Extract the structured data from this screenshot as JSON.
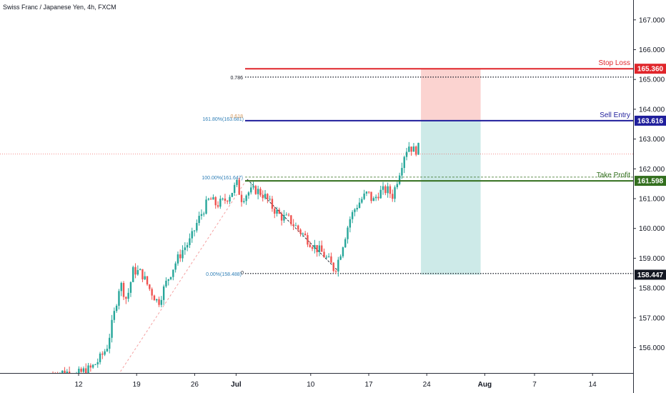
{
  "header": {
    "title": "Swiss Franc / Japanese Yen, 4h, FXCM"
  },
  "chart_data": {
    "type": "candlestick",
    "title": "Swiss Franc / Japanese Yen, 4h, FXCM",
    "y_ticks": [
      "156.000",
      "157.000",
      "158.000",
      "159.000",
      "160.000",
      "161.000",
      "162.000",
      "163.000",
      "164.000",
      "165.000",
      "166.000",
      "167.000"
    ],
    "ylim": [
      155.4,
      167.4
    ],
    "x_ticks": [
      {
        "label": "12",
        "day": 12
      },
      {
        "label": "19",
        "day": 19
      },
      {
        "label": "26",
        "day": 26
      },
      {
        "label": "Jul",
        "day": 31
      },
      {
        "label": "10",
        "day": 40
      },
      {
        "label": "17",
        "day": 47
      },
      {
        "label": "24",
        "day": 54
      },
      {
        "label": "Aug",
        "day": 61
      },
      {
        "label": "7",
        "day": 67
      },
      {
        "label": "14",
        "day": 74
      }
    ],
    "last_price": 162.5,
    "price_path": [
      [
        8.9,
        155.1
      ],
      [
        10.5,
        155.2
      ],
      [
        11.3,
        155.0
      ],
      [
        12.5,
        155.2
      ],
      [
        13.5,
        155.3
      ],
      [
        14.5,
        155.6
      ],
      [
        15.4,
        156.0
      ],
      [
        16.2,
        157.0
      ],
      [
        17.0,
        158.2
      ],
      [
        17.8,
        157.6
      ],
      [
        18.6,
        158.6
      ],
      [
        19.6,
        158.5
      ],
      [
        20.5,
        158.0
      ],
      [
        21.6,
        157.5
      ],
      [
        22.6,
        158.2
      ],
      [
        23.6,
        158.8
      ],
      [
        24.6,
        159.3
      ],
      [
        25.5,
        159.6
      ],
      [
        26.3,
        160.2
      ],
      [
        27.0,
        160.6
      ],
      [
        27.8,
        161.0
      ],
      [
        28.6,
        160.8
      ],
      [
        29.5,
        160.9
      ],
      [
        30.4,
        161.2
      ],
      [
        31.1,
        161.5
      ],
      [
        31.6,
        161.0
      ],
      [
        32.4,
        161.2
      ],
      [
        33.4,
        161.3
      ],
      [
        34.4,
        161.1
      ],
      [
        35.4,
        160.7
      ],
      [
        36.4,
        160.4
      ],
      [
        37.4,
        160.3
      ],
      [
        38.4,
        160.0
      ],
      [
        39.4,
        159.7
      ],
      [
        40.4,
        159.4
      ],
      [
        41.3,
        159.2
      ],
      [
        42.2,
        158.9
      ],
      [
        42.9,
        158.6
      ],
      [
        43.4,
        159.0
      ],
      [
        44.0,
        159.6
      ],
      [
        44.7,
        160.3
      ],
      [
        45.4,
        160.7
      ],
      [
        46.2,
        161.0
      ],
      [
        46.9,
        161.2
      ],
      [
        47.5,
        160.9
      ],
      [
        48.2,
        161.2
      ],
      [
        49.2,
        161.3
      ],
      [
        49.9,
        161.1
      ],
      [
        50.6,
        161.8
      ],
      [
        51.3,
        162.5
      ],
      [
        51.8,
        162.8
      ],
      [
        52.5,
        162.6
      ],
      [
        53.0,
        162.7
      ]
    ],
    "fib_left": {
      "levels": [
        {
          "label": "0.786",
          "price": 165.08
        },
        {
          "label": "161.80%(163.681)",
          "price": 163.68
        },
        {
          "label": "0.618",
          "price": 163.68
        },
        {
          "label": "100.00%(161.647)",
          "price": 161.65
        },
        {
          "label": "0.00%(158.488)",
          "price": 158.488
        },
        {
          "label": "0",
          "price": 158.488
        }
      ]
    },
    "levels": [
      {
        "name": "Stop Loss",
        "price": 165.36,
        "price_label": "165.360",
        "color": "#e0262b"
      },
      {
        "name": "Sell Entry",
        "price": 163.616,
        "price_label": "163.616",
        "color": "#1f1e9c"
      },
      {
        "name": "Take Profit",
        "price": 161.598,
        "price_label": "161.598",
        "color": "#336f1e"
      }
    ],
    "extra_price_label": {
      "price": 158.447,
      "price_label": "158.447",
      "color": "#131722"
    },
    "risk_zone": {
      "from_day": 53.3,
      "to_day": 60.5,
      "top": 165.36,
      "bottom": 163.616,
      "color": "#fbd3d0"
    },
    "reward_zone": {
      "from_day": 53.3,
      "to_day": 60.5,
      "top": 163.616,
      "bottom": 158.447,
      "color": "#cdeae8"
    }
  }
}
